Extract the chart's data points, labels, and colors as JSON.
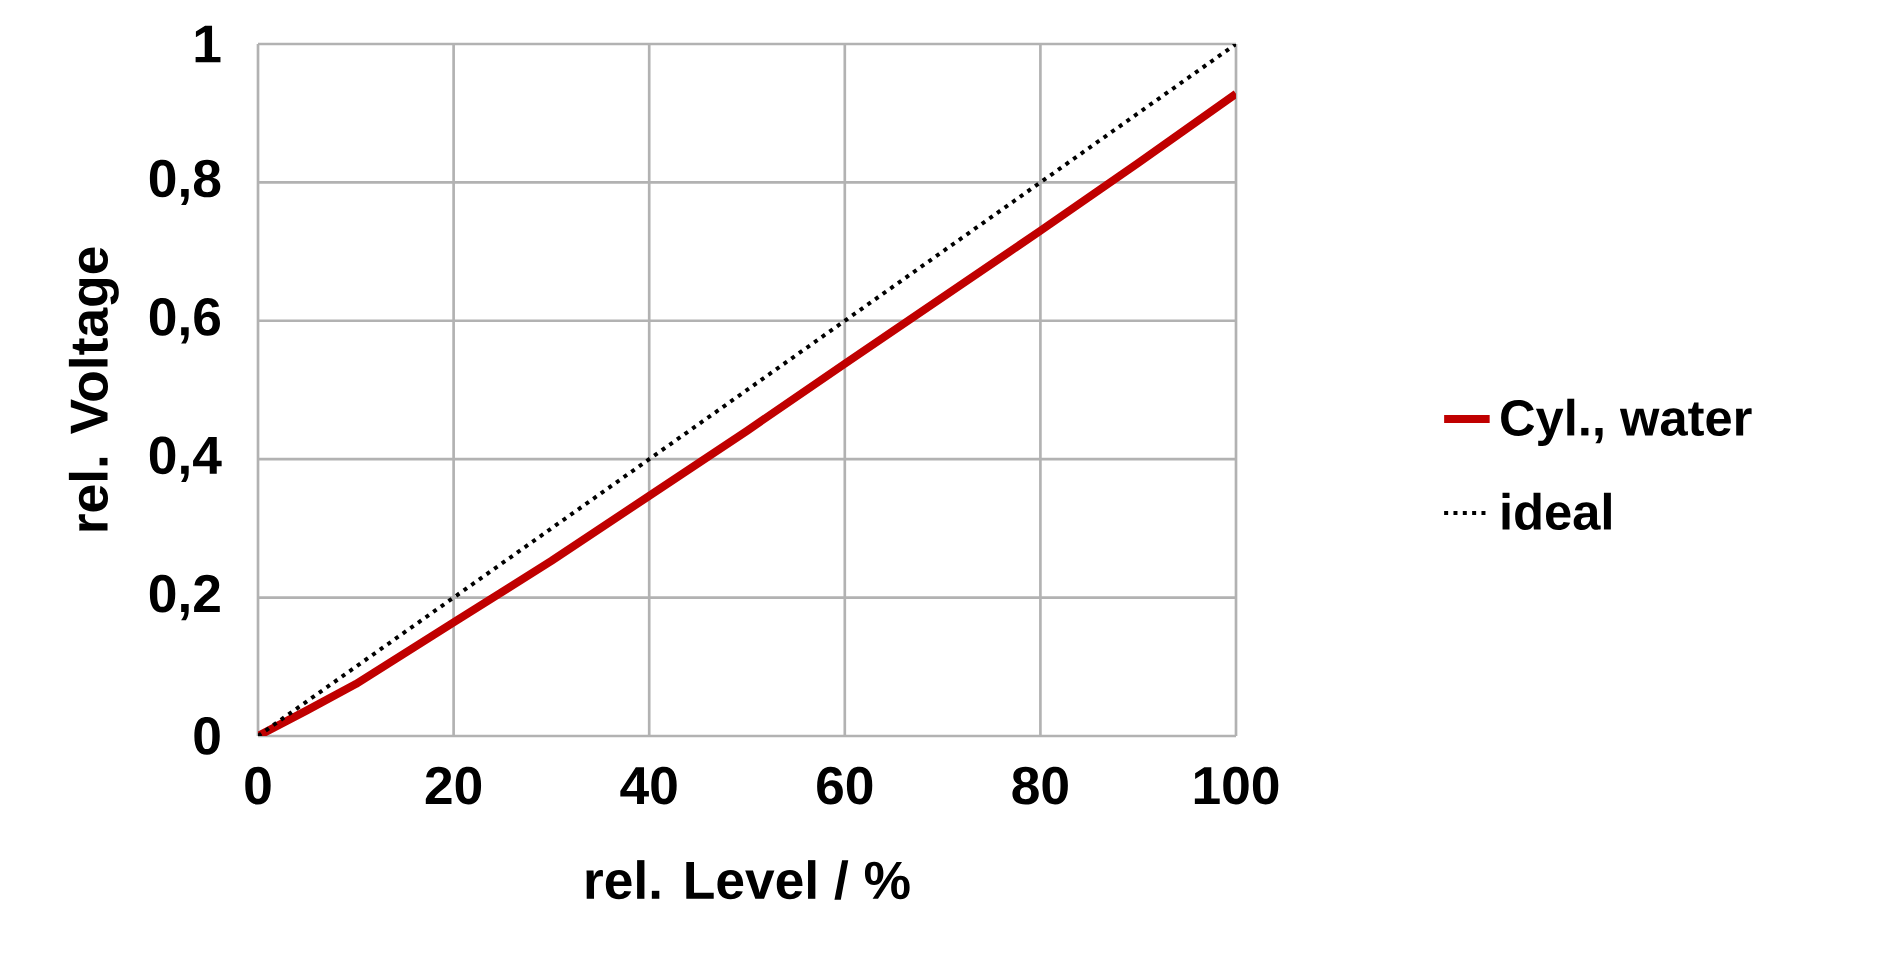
{
  "chart_data": {
    "type": "line",
    "xlabel": "rel. Level / %",
    "ylabel": "rel. Voltage",
    "x": [
      0,
      5,
      10,
      20,
      30,
      40,
      50,
      60,
      70,
      80,
      90,
      100
    ],
    "series": [
      {
        "name": "Cyl., water",
        "color": "#c00000",
        "line_style": "solid",
        "values": [
          0,
          0.037,
          0.075,
          0.164,
          0.253,
          0.347,
          0.441,
          0.538,
          0.634,
          0.73,
          0.828,
          0.928
        ]
      },
      {
        "name": "ideal",
        "color": "#000000",
        "line_style": "dotted",
        "x": [
          0,
          100
        ],
        "values": [
          0,
          1
        ]
      }
    ],
    "xlim": [
      0,
      100
    ],
    "ylim": [
      0,
      1
    ],
    "xticks": [
      0,
      20,
      40,
      60,
      80,
      100
    ],
    "yticks": [
      0,
      {
        "value": 0.2,
        "label": "0,2"
      },
      {
        "value": 0.4,
        "label": "0,4"
      },
      {
        "value": 0.6,
        "label": "0,6"
      },
      {
        "value": 0.8,
        "label": "0,8"
      },
      1
    ],
    "grid": true,
    "legend": "right",
    "marker": "none"
  }
}
